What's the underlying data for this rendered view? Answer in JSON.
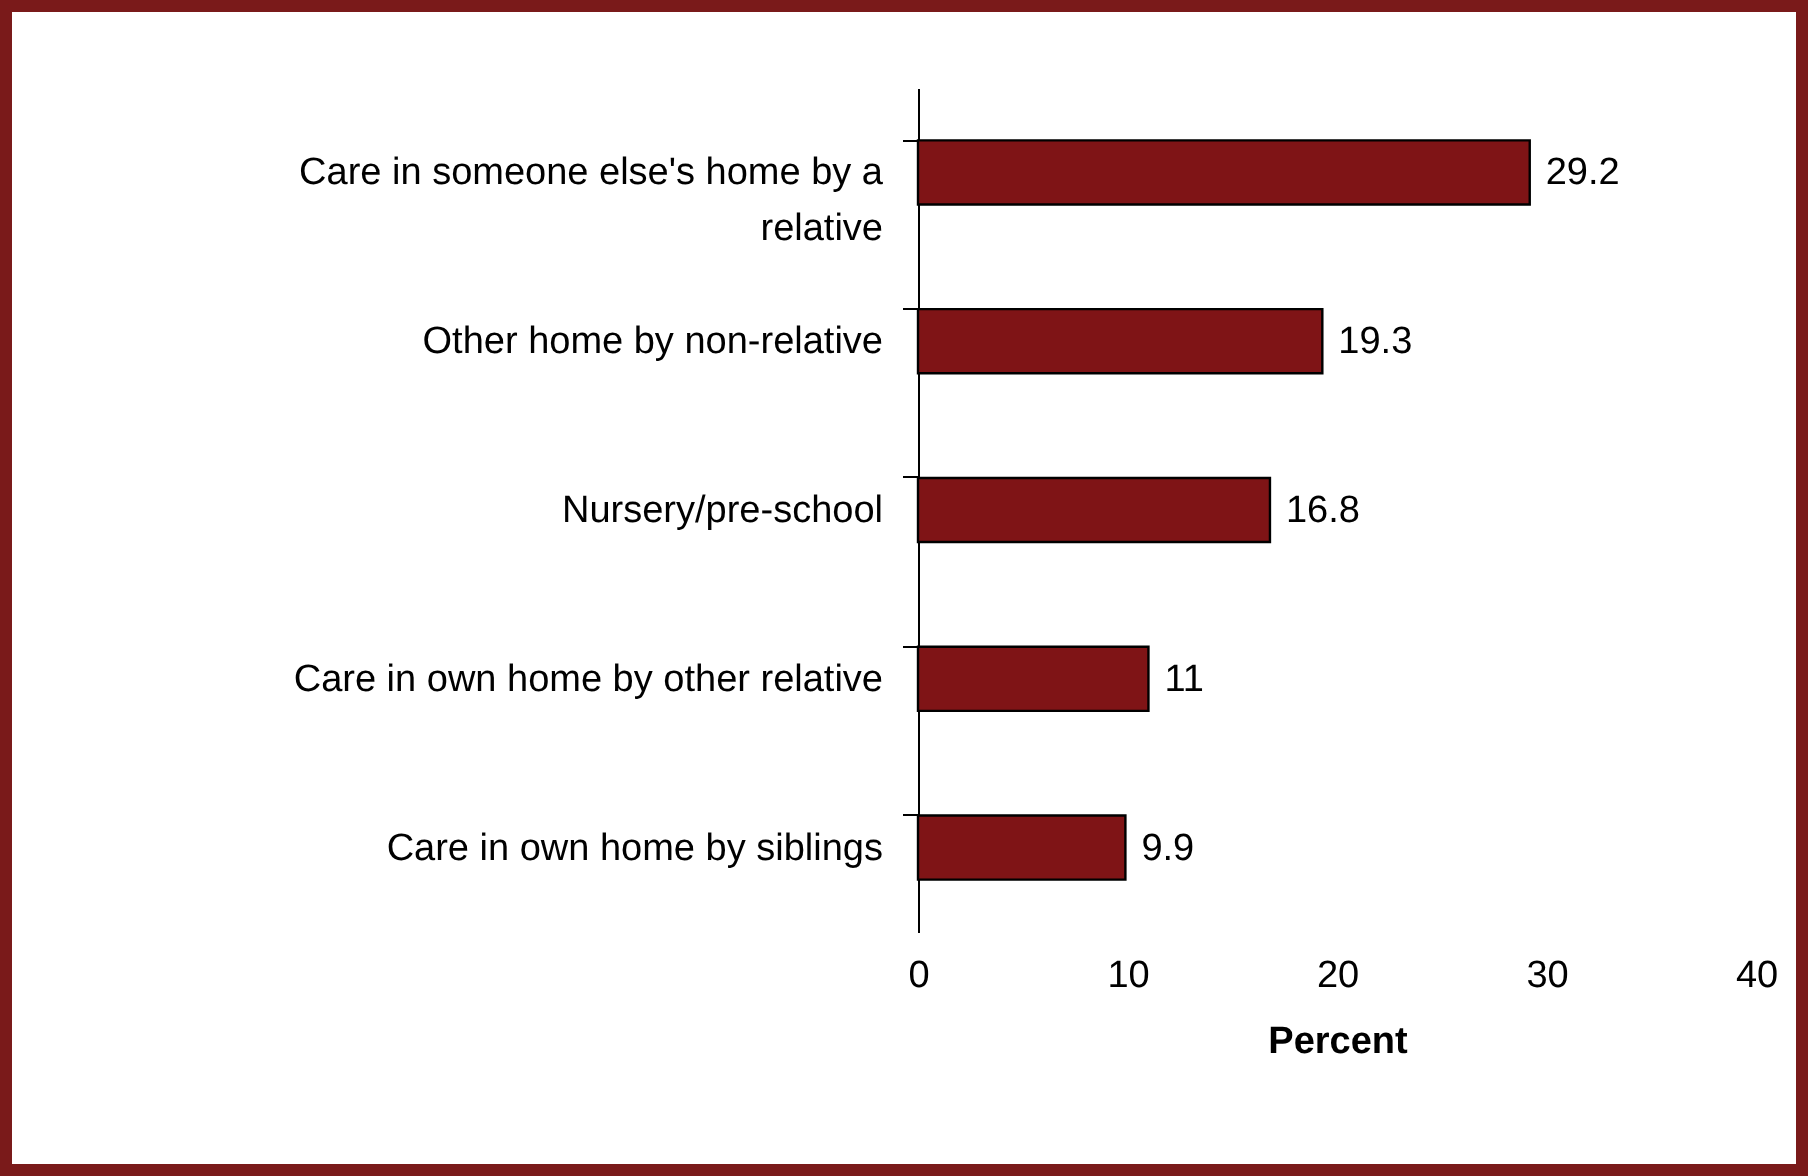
{
  "chart_data": {
    "type": "bar",
    "orientation": "horizontal",
    "xlabel": "Percent",
    "categories": [
      "Care in someone else's home by a relative",
      "Other home by non-relative",
      "Nursery/pre-school",
      "Care in own home by other relative",
      "Care in own home  by siblings"
    ],
    "values": [
      29.2,
      19.3,
      16.8,
      11,
      9.9
    ],
    "color": "#7f1416",
    "xlim": [
      0,
      40
    ],
    "xticks": [
      0,
      10,
      20,
      30,
      40
    ],
    "grid": false,
    "data_labels": true
  }
}
